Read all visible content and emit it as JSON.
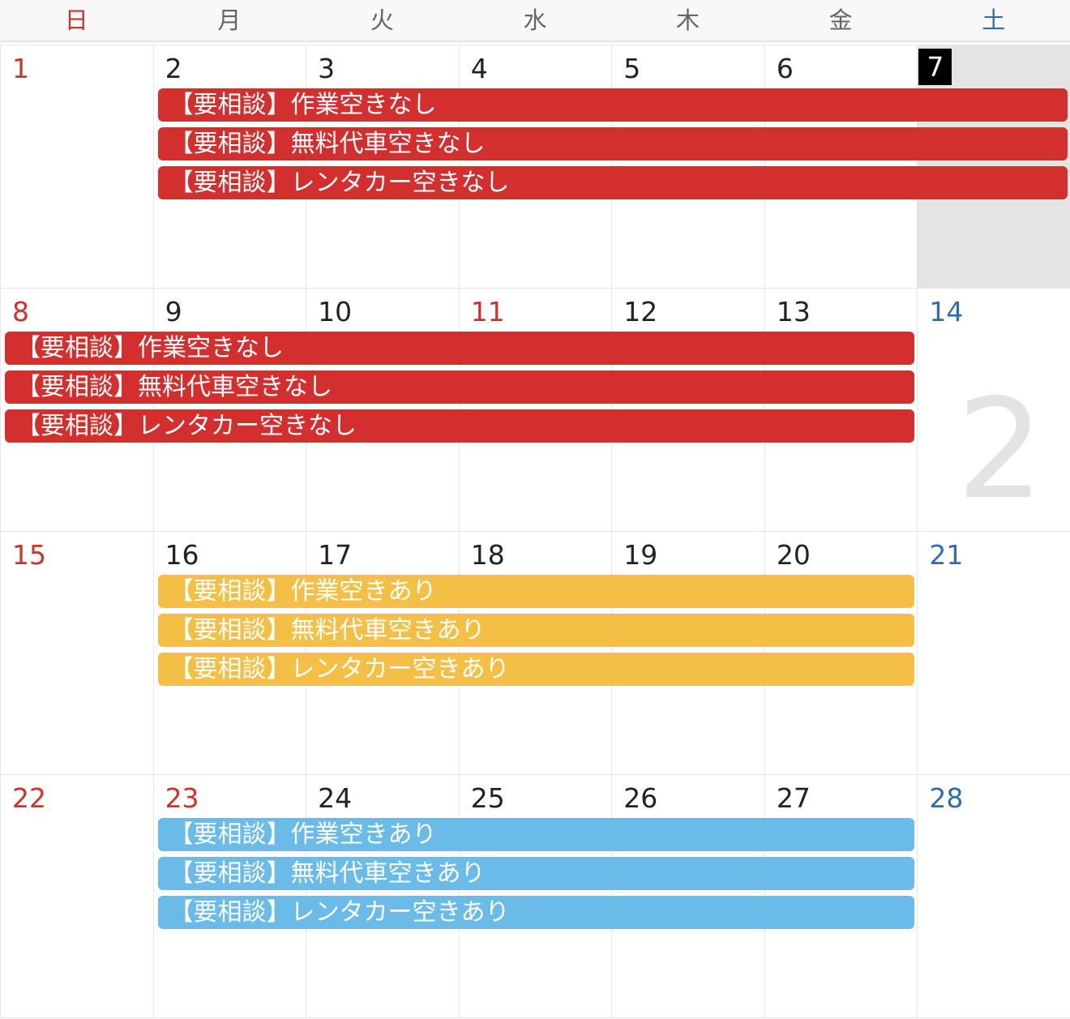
{
  "weekdays": [
    {
      "label": "日",
      "color": "#d1302d"
    },
    {
      "label": "月",
      "color": "#666666"
    },
    {
      "label": "火",
      "color": "#666666"
    },
    {
      "label": "水",
      "color": "#666666"
    },
    {
      "label": "木",
      "color": "#666666"
    },
    {
      "label": "金",
      "color": "#666666"
    },
    {
      "label": "土",
      "color": "#2f6db0"
    }
  ],
  "month_watermark": "2",
  "colors": {
    "red": "#d32f2f",
    "yellow": "#f4bf45",
    "blue": "#6bbbe8",
    "today_bg": "#000000"
  },
  "weeks": [
    {
      "days": [
        {
          "d": "1",
          "t": "red"
        },
        {
          "d": "2"
        },
        {
          "d": "3"
        },
        {
          "d": "4"
        },
        {
          "d": "5"
        },
        {
          "d": "6"
        },
        {
          "d": "7",
          "t": "today"
        }
      ],
      "events": [
        {
          "label": "【要相談】作業空きなし",
          "color": "red",
          "start": 1,
          "end": 7
        },
        {
          "label": "【要相談】無料代車空きなし",
          "color": "red",
          "start": 1,
          "end": 7
        },
        {
          "label": "【要相談】レンタカー空きなし",
          "color": "red",
          "start": 1,
          "end": 7
        }
      ]
    },
    {
      "days": [
        {
          "d": "8",
          "t": "red"
        },
        {
          "d": "9"
        },
        {
          "d": "10"
        },
        {
          "d": "11",
          "t": "red"
        },
        {
          "d": "12"
        },
        {
          "d": "13"
        },
        {
          "d": "14",
          "t": "blue"
        }
      ],
      "events": [
        {
          "label": "【要相談】作業空きなし",
          "color": "red",
          "start": 0,
          "end": 6
        },
        {
          "label": "【要相談】無料代車空きなし",
          "color": "red",
          "start": 0,
          "end": 6
        },
        {
          "label": "【要相談】レンタカー空きなし",
          "color": "red",
          "start": 0,
          "end": 6
        }
      ]
    },
    {
      "days": [
        {
          "d": "15",
          "t": "red"
        },
        {
          "d": "16"
        },
        {
          "d": "17"
        },
        {
          "d": "18"
        },
        {
          "d": "19"
        },
        {
          "d": "20"
        },
        {
          "d": "21",
          "t": "blue"
        }
      ],
      "events": [
        {
          "label": "【要相談】作業空きあり",
          "color": "yellow",
          "start": 1,
          "end": 6
        },
        {
          "label": "【要相談】無料代車空きあり",
          "color": "yellow",
          "start": 1,
          "end": 6
        },
        {
          "label": "【要相談】レンタカー空きあり",
          "color": "yellow",
          "start": 1,
          "end": 6
        }
      ]
    },
    {
      "days": [
        {
          "d": "22",
          "t": "red"
        },
        {
          "d": "23",
          "t": "red"
        },
        {
          "d": "24"
        },
        {
          "d": "25"
        },
        {
          "d": "26"
        },
        {
          "d": "27"
        },
        {
          "d": "28",
          "t": "blue"
        }
      ],
      "events": [
        {
          "label": "【要相談】作業空きあり",
          "color": "blue",
          "start": 1,
          "end": 6
        },
        {
          "label": "【要相談】無料代車空きあり",
          "color": "blue",
          "start": 1,
          "end": 6
        },
        {
          "label": "【要相談】レンタカー空きあり",
          "color": "blue",
          "start": 1,
          "end": 6
        }
      ]
    }
  ]
}
